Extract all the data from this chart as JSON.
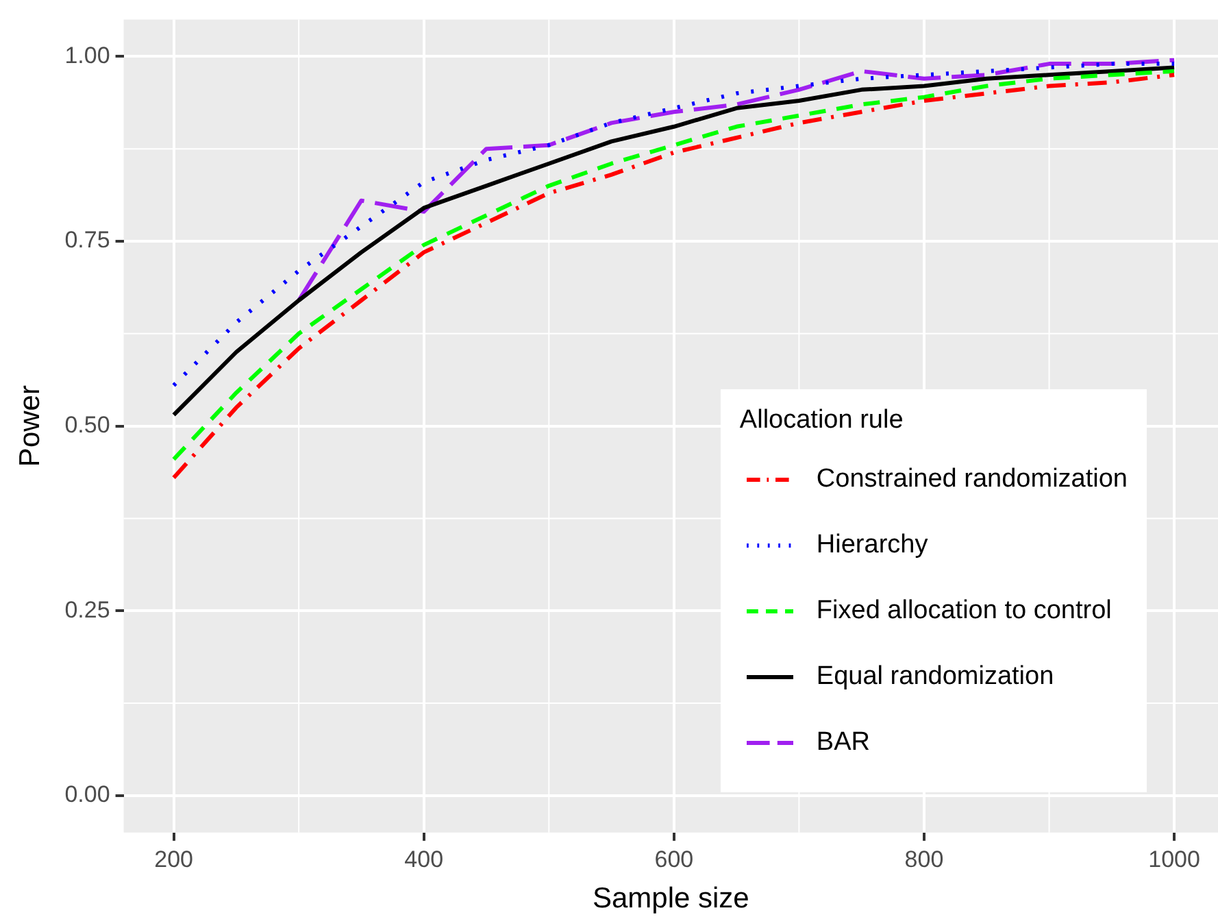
{
  "chart_data": {
    "type": "line",
    "xlabel": "Sample size",
    "ylabel": "Power",
    "legend_title": "Allocation rule",
    "legend": "bottom right",
    "grid": true,
    "x": [
      200,
      250,
      300,
      350,
      400,
      450,
      500,
      550,
      600,
      650,
      700,
      750,
      800,
      850,
      900,
      950,
      1000
    ],
    "xlim": [
      160,
      1035
    ],
    "xticks": [
      200,
      400,
      600,
      800,
      1000
    ],
    "ylim": [
      -0.05,
      1.05
    ],
    "yticks": [
      {
        "value": 0,
        "label": "0.00"
      },
      {
        "value": 0.25,
        "label": "0.25"
      },
      {
        "value": 0.5,
        "label": "0.50"
      },
      {
        "value": 0.75,
        "label": "0.75"
      },
      {
        "value": 1,
        "label": "1.00"
      }
    ],
    "series": [
      {
        "name": "Constrained randomization",
        "color": "#ff0000",
        "line_style": "dotdash",
        "values": [
          0.43,
          0.525,
          0.605,
          0.67,
          0.735,
          0.775,
          0.815,
          0.84,
          0.87,
          0.89,
          0.91,
          0.925,
          0.94,
          0.95,
          0.96,
          0.965,
          0.975
        ]
      },
      {
        "name": "Hierarchy",
        "color": "#0000ff",
        "line_style": "dotted",
        "values": [
          0.555,
          0.64,
          0.71,
          0.77,
          0.83,
          0.86,
          0.88,
          0.91,
          0.93,
          0.95,
          0.96,
          0.97,
          0.975,
          0.98,
          0.985,
          0.99,
          0.99
        ]
      },
      {
        "name": "Fixed allocation to control",
        "color": "#00ff00",
        "line_style": "dashed",
        "values": [
          0.455,
          0.545,
          0.625,
          0.685,
          0.745,
          0.785,
          0.825,
          0.855,
          0.88,
          0.905,
          0.92,
          0.935,
          0.945,
          0.96,
          0.97,
          0.975,
          0.98
        ]
      },
      {
        "name": "Equal randomization",
        "color": "#000000",
        "line_style": "solid",
        "values": [
          0.515,
          0.6,
          0.67,
          0.735,
          0.795,
          0.825,
          0.855,
          0.885,
          0.905,
          0.93,
          0.94,
          0.955,
          0.96,
          0.97,
          0.975,
          0.98,
          0.985
        ]
      },
      {
        "name": "BAR",
        "color": "#a020f0",
        "line_style": "longdash",
        "values": [
          null,
          null,
          0.67,
          0.805,
          0.79,
          0.875,
          0.88,
          0.91,
          0.925,
          0.935,
          0.955,
          0.98,
          0.97,
          0.975,
          0.99,
          0.99,
          0.995
        ]
      }
    ]
  }
}
